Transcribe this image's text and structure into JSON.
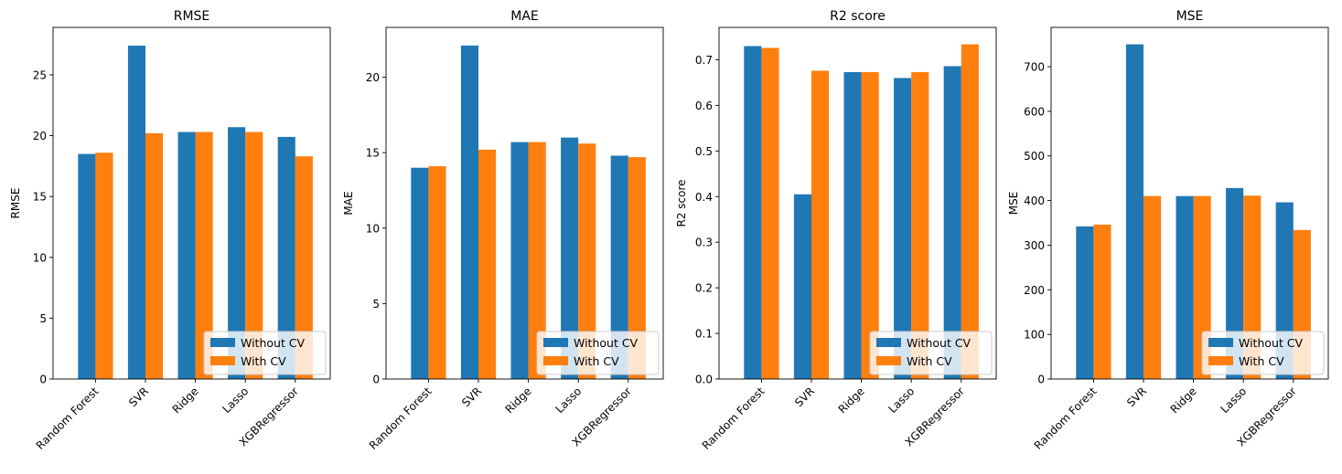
{
  "colors": {
    "without_cv": "#1f77b4",
    "with_cv": "#ff7f0e"
  },
  "chart_data": [
    {
      "type": "bar",
      "title": "RMSE",
      "ylabel": "RMSE",
      "xlabel": "",
      "categories": [
        "Random Forest",
        "SVR",
        "Ridge",
        "Lasso",
        "XGBRegressor"
      ],
      "series": [
        {
          "name": "Without CV",
          "values": [
            18.5,
            27.4,
            20.3,
            20.7,
            19.9
          ]
        },
        {
          "name": "With CV",
          "values": [
            18.6,
            20.2,
            20.3,
            20.3,
            18.3
          ]
        }
      ],
      "ylim": [
        0,
        28.9
      ],
      "yticks": [
        0,
        5,
        10,
        15,
        20,
        25
      ],
      "ytick_labels": [
        "0",
        "5",
        "10",
        "15",
        "20",
        "25"
      ],
      "legend": "lower right",
      "grid": false
    },
    {
      "type": "bar",
      "title": "MAE",
      "ylabel": "MAE",
      "xlabel": "",
      "categories": [
        "Random Forest",
        "SVR",
        "Ridge",
        "Lasso",
        "XGBRegressor"
      ],
      "series": [
        {
          "name": "Without CV",
          "values": [
            14.0,
            22.1,
            15.7,
            16.0,
            14.8
          ]
        },
        {
          "name": "With CV",
          "values": [
            14.1,
            15.2,
            15.7,
            15.6,
            14.7
          ]
        }
      ],
      "ylim": [
        0,
        23.3
      ],
      "yticks": [
        0,
        5,
        10,
        15,
        20
      ],
      "ytick_labels": [
        "0",
        "5",
        "10",
        "15",
        "20"
      ],
      "legend": "lower right",
      "grid": false
    },
    {
      "type": "bar",
      "title": "R2 score",
      "ylabel": "R2 score",
      "xlabel": "",
      "categories": [
        "Random Forest",
        "SVR",
        "Ridge",
        "Lasso",
        "XGBRegressor"
      ],
      "series": [
        {
          "name": "Without CV",
          "values": [
            0.73,
            0.405,
            0.673,
            0.66,
            0.686
          ]
        },
        {
          "name": "With CV",
          "values": [
            0.726,
            0.676,
            0.673,
            0.673,
            0.734
          ]
        }
      ],
      "ylim": [
        0,
        0.771
      ],
      "yticks": [
        0,
        0.1,
        0.2,
        0.3,
        0.4,
        0.5,
        0.6,
        0.7
      ],
      "ytick_labels": [
        "0.0",
        "0.1",
        "0.2",
        "0.3",
        "0.4",
        "0.5",
        "0.6",
        "0.7"
      ],
      "legend": "lower right",
      "grid": false
    },
    {
      "type": "bar",
      "title": "MSE",
      "ylabel": "MSE",
      "xlabel": "",
      "categories": [
        "Random Forest",
        "SVR",
        "Ridge",
        "Lasso",
        "XGBRegressor"
      ],
      "series": [
        {
          "name": "Without CV",
          "values": [
            342,
            750,
            410,
            428,
            396
          ]
        },
        {
          "name": "With CV",
          "values": [
            346,
            410,
            410,
            411,
            334
          ]
        }
      ],
      "ylim": [
        0,
        788
      ],
      "yticks": [
        0,
        100,
        200,
        300,
        400,
        500,
        600,
        700
      ],
      "ytick_labels": [
        "0",
        "100",
        "200",
        "300",
        "400",
        "500",
        "600",
        "700"
      ],
      "legend": "lower right",
      "grid": false
    }
  ]
}
